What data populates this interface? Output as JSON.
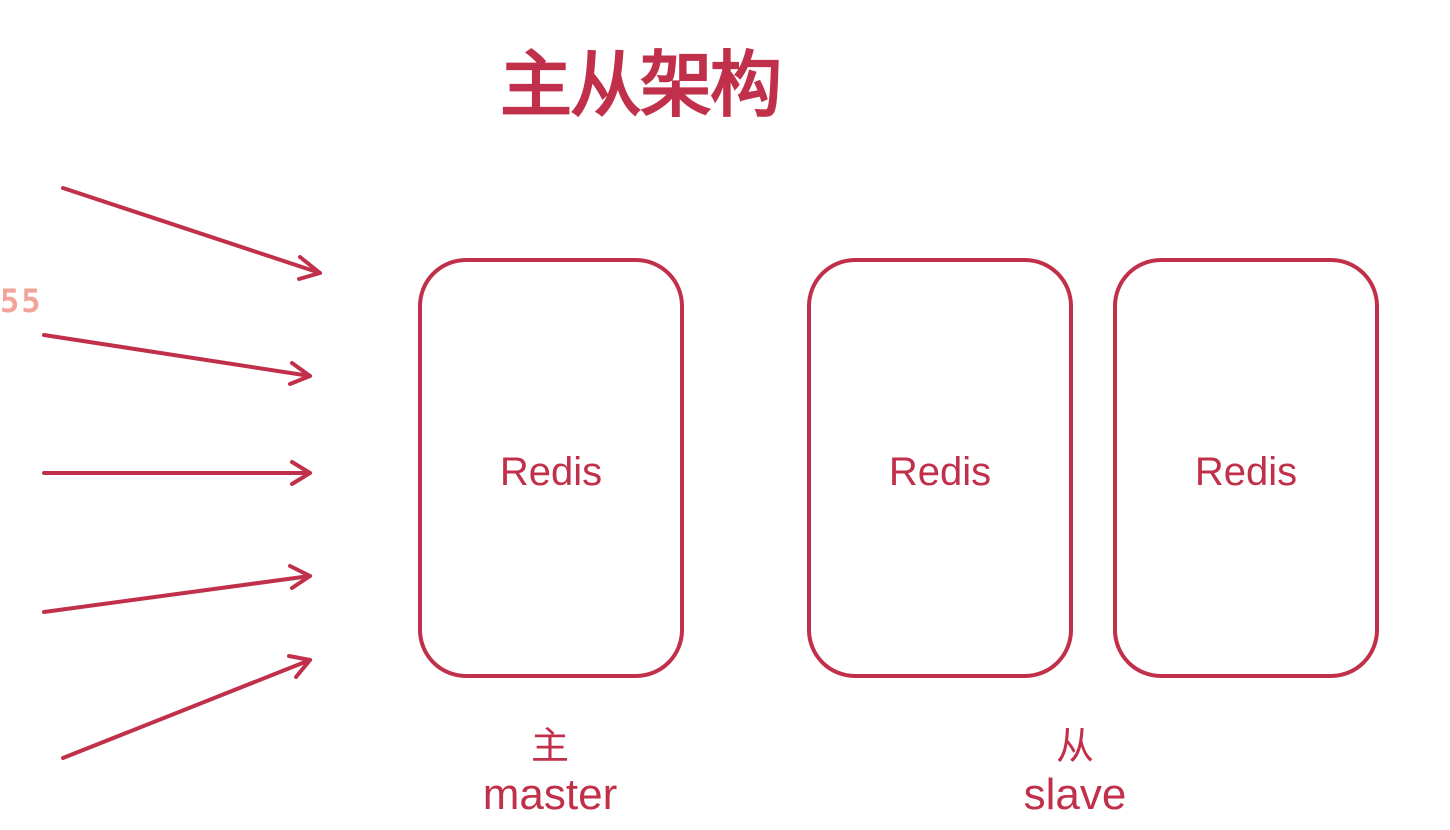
{
  "title": "主从架构",
  "edge_fragment": "55",
  "nodes": [
    {
      "label": "Redis"
    },
    {
      "label": "Redis"
    },
    {
      "label": "Redis"
    }
  ],
  "captions": {
    "master": {
      "zh": "主",
      "en": "master"
    },
    "slave": {
      "zh": "从",
      "en": "slave"
    }
  },
  "colors": {
    "accent": "#c1304a",
    "fragment": "#f2a39a",
    "background": "#ffffff"
  },
  "arrows": {
    "count": 5,
    "direction": "incoming-to-master"
  }
}
